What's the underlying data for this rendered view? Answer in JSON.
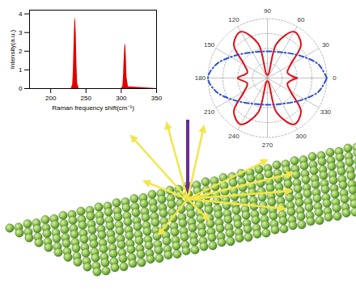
{
  "chart_data": [
    {
      "type": "area",
      "x": [
        170,
        229,
        231,
        232,
        233,
        234,
        235,
        236,
        237,
        238,
        240,
        300,
        302,
        303,
        304,
        305,
        306,
        307,
        308,
        310,
        350
      ],
      "values": [
        0,
        0,
        0.2,
        0.9,
        2.4,
        3.6,
        3.8,
        3.0,
        1.3,
        0.3,
        0,
        0,
        0.1,
        0.6,
        1.6,
        2.3,
        2.4,
        1.7,
        0.6,
        0.1,
        0
      ],
      "color": "#e00000",
      "x_label": "Raman frequency shift(cm⁻¹)",
      "y_label": "Intensity(a.u.)",
      "xlim": [
        170,
        350
      ],
      "xticks": [
        200,
        250,
        300,
        350
      ],
      "ylim": [
        0,
        4.2
      ],
      "yticks": [
        0,
        1,
        2,
        3,
        4
      ]
    },
    {
      "type": "polar",
      "x": [
        0,
        15,
        30,
        45,
        60,
        75,
        90,
        105,
        120,
        135,
        150,
        165,
        180,
        195,
        210,
        225,
        240,
        255,
        270,
        285,
        300,
        315,
        330,
        345,
        360
      ],
      "series": [
        {
          "color": "#e0101a",
          "line_style": "solid",
          "values": [
            0.5,
            0.35,
            0.45,
            0.8,
            0.9,
            0.6,
            0.05,
            0.6,
            0.9,
            0.8,
            0.45,
            0.35,
            0.5,
            0.35,
            0.45,
            0.8,
            0.9,
            0.6,
            0.05,
            0.6,
            0.9,
            0.8,
            0.45,
            0.35,
            0.5
          ]
        },
        {
          "color": "#3050d0",
          "line_style": "dashdot",
          "values": [
            1,
            0.89,
            0.71,
            0.58,
            0.5,
            0.46,
            0.45,
            0.46,
            0.5,
            0.58,
            0.71,
            0.89,
            1,
            0.89,
            0.71,
            0.58,
            0.5,
            0.46,
            0.45,
            0.46,
            0.5,
            0.58,
            0.71,
            0.89,
            1
          ]
        }
      ],
      "xlim": [
        0,
        360
      ],
      "xticks": [
        0,
        30,
        60,
        90,
        120,
        150,
        180,
        210,
        240,
        270,
        300,
        330
      ],
      "ylim": [
        0,
        1
      ],
      "yticks": [
        0.25,
        0.5,
        0.75,
        1
      ],
      "grid": true,
      "tick_labels": "x"
    }
  ]
}
